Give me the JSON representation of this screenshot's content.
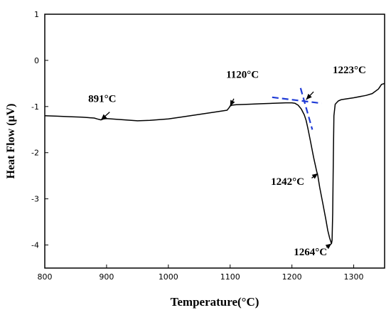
{
  "chart_data": {
    "type": "line",
    "title": "",
    "xlabel": "Temperature(°C)",
    "ylabel": "Heat Flow (μV)",
    "xlim": [
      800,
      1350
    ],
    "ylim": [
      -4.5,
      1
    ],
    "xticks": [
      800,
      900,
      1000,
      1100,
      1200,
      1300
    ],
    "yticks": [
      1,
      0,
      -1,
      -2,
      -3,
      -4
    ],
    "grid": false,
    "legend": "none",
    "line_color": "#000000",
    "tangent_color": "#1f3bd6",
    "series": [
      {
        "x": [
          800,
          820,
          840,
          860,
          870,
          880,
          885,
          891,
          895,
          900,
          920,
          950,
          970,
          1000,
          1020,
          1050,
          1080,
          1095,
          1098,
          1100,
          1103,
          1110,
          1130,
          1150,
          1170,
          1190,
          1200,
          1205,
          1210,
          1215,
          1220,
          1223,
          1226,
          1230,
          1235,
          1240,
          1242,
          1245,
          1250,
          1255,
          1258,
          1261,
          1264,
          1265,
          1266,
          1267,
          1268,
          1270,
          1275,
          1280,
          1300,
          1320,
          1330,
          1340,
          1345,
          1350
        ],
        "y": [
          -1.2,
          -1.21,
          -1.22,
          -1.23,
          -1.24,
          -1.25,
          -1.27,
          -1.29,
          -1.27,
          -1.26,
          -1.28,
          -1.31,
          -1.3,
          -1.27,
          -1.23,
          -1.17,
          -1.11,
          -1.08,
          -1.03,
          -0.99,
          -0.97,
          -0.96,
          -0.95,
          -0.94,
          -0.93,
          -0.92,
          -0.92,
          -0.93,
          -0.97,
          -1.05,
          -1.18,
          -1.3,
          -1.48,
          -1.75,
          -2.1,
          -2.4,
          -2.5,
          -2.75,
          -3.1,
          -3.45,
          -3.68,
          -3.85,
          -3.97,
          -3.9,
          -3.3,
          -2.1,
          -1.2,
          -0.95,
          -0.88,
          -0.85,
          -0.81,
          -0.76,
          -0.72,
          -0.62,
          -0.52,
          -0.5
        ]
      }
    ],
    "annotations": [
      {
        "text": "891°C",
        "x": 891,
        "y": -1.29
      },
      {
        "text": "1120°C",
        "x": 1100,
        "y": -0.99
      },
      {
        "text": "1223°C",
        "x": 1223,
        "y": -0.85
      },
      {
        "text": "1242°C",
        "x": 1242,
        "y": -2.45
      },
      {
        "text": "1264°C",
        "x": 1264,
        "y": -3.97
      }
    ],
    "tangent_lines": [
      {
        "x": [
          1168,
          1248
        ],
        "y": [
          -0.8,
          -0.93
        ]
      },
      {
        "x": [
          1214,
          1233
        ],
        "y": [
          -0.6,
          -1.5
        ]
      }
    ]
  }
}
